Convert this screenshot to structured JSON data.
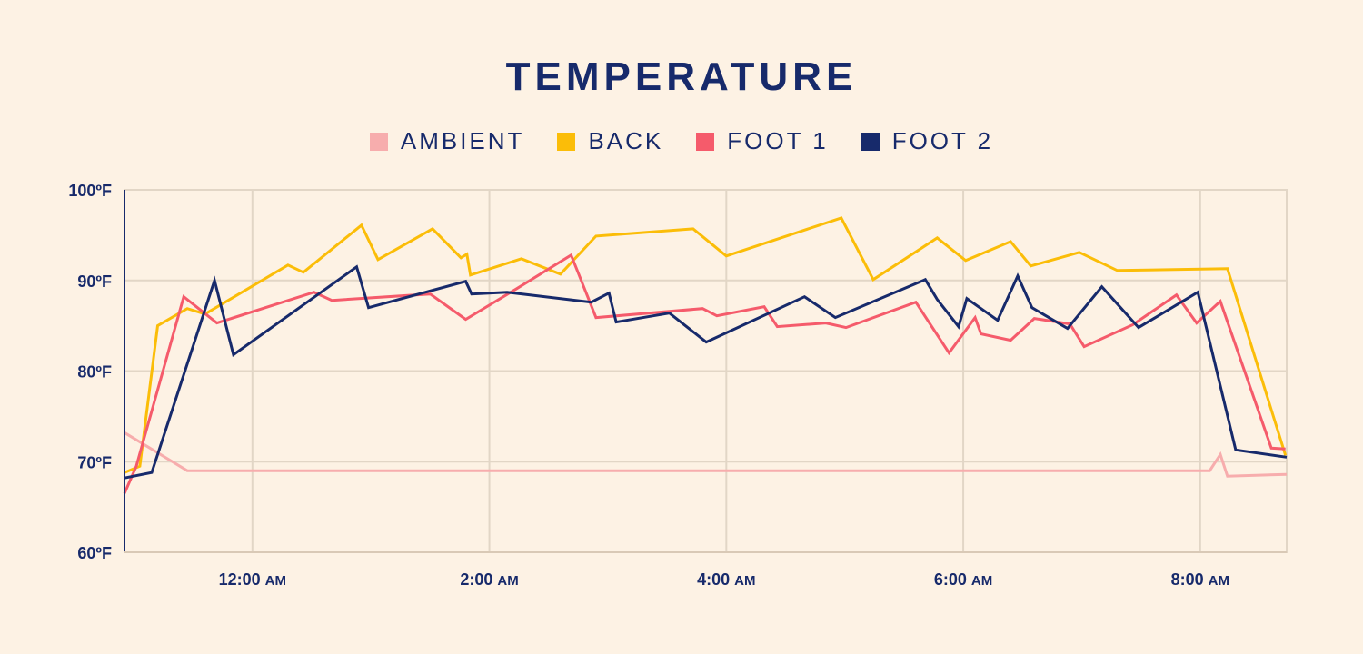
{
  "chart_data": {
    "type": "line",
    "title": "TEMPERATURE",
    "xlabel": "",
    "ylabel": "",
    "x_unit": "hours after 12:00 AM",
    "xlim": [
      -1.08,
      8.73
    ],
    "ylim": [
      60,
      100
    ],
    "grid": true,
    "legend_position": "top-center",
    "y_ticks": [
      {
        "value": 60,
        "label": "60ºF"
      },
      {
        "value": 70,
        "label": "70ºF"
      },
      {
        "value": 80,
        "label": "80ºF"
      },
      {
        "value": 90,
        "label": "90ºF"
      },
      {
        "value": 100,
        "label": "100ºF"
      }
    ],
    "x_ticks": [
      {
        "value": 0,
        "time": "12:00",
        "ampm": "AM"
      },
      {
        "value": 2,
        "time": "2:00",
        "ampm": "AM"
      },
      {
        "value": 4,
        "time": "4:00",
        "ampm": "AM"
      },
      {
        "value": 6,
        "time": "6:00",
        "ampm": "AM"
      },
      {
        "value": 8,
        "time": "8:00",
        "ampm": "AM"
      }
    ],
    "series": [
      {
        "name": "AMBIENT",
        "color": "#f7adad",
        "points": [
          [
            -1.08,
            73.2
          ],
          [
            -0.55,
            69.0
          ],
          [
            8.08,
            69.0
          ],
          [
            8.17,
            70.8
          ],
          [
            8.23,
            68.4
          ],
          [
            8.73,
            68.6
          ]
        ]
      },
      {
        "name": "BACK",
        "color": "#fbbd08",
        "points": [
          [
            -1.08,
            68.8
          ],
          [
            -0.95,
            69.5
          ],
          [
            -0.8,
            85.0
          ],
          [
            -0.55,
            86.9
          ],
          [
            -0.4,
            86.3
          ],
          [
            0.3,
            91.7
          ],
          [
            0.43,
            90.9
          ],
          [
            0.92,
            96.1
          ],
          [
            1.06,
            92.3
          ],
          [
            1.52,
            95.7
          ],
          [
            1.76,
            92.5
          ],
          [
            1.81,
            92.9
          ],
          [
            1.84,
            90.6
          ],
          [
            2.27,
            92.4
          ],
          [
            2.6,
            90.7
          ],
          [
            2.9,
            94.9
          ],
          [
            3.72,
            95.7
          ],
          [
            4.0,
            92.7
          ],
          [
            4.97,
            96.9
          ],
          [
            5.24,
            90.1
          ],
          [
            5.78,
            94.7
          ],
          [
            6.02,
            92.2
          ],
          [
            6.4,
            94.3
          ],
          [
            6.57,
            91.6
          ],
          [
            6.98,
            93.1
          ],
          [
            7.3,
            91.1
          ],
          [
            8.23,
            91.3
          ],
          [
            8.72,
            70.7
          ]
        ]
      },
      {
        "name": "FOOT 1",
        "color": "#f55b6b",
        "points": [
          [
            -1.08,
            66.5
          ],
          [
            -0.98,
            69.5
          ],
          [
            -0.58,
            88.2
          ],
          [
            -0.3,
            85.3
          ],
          [
            0.52,
            88.7
          ],
          [
            0.67,
            87.8
          ],
          [
            1.5,
            88.5
          ],
          [
            1.8,
            85.7
          ],
          [
            2.22,
            89.0
          ],
          [
            2.69,
            92.8
          ],
          [
            2.9,
            85.9
          ],
          [
            3.8,
            86.9
          ],
          [
            3.92,
            86.1
          ],
          [
            4.32,
            87.1
          ],
          [
            4.43,
            84.9
          ],
          [
            4.84,
            85.3
          ],
          [
            5.01,
            84.8
          ],
          [
            5.6,
            87.6
          ],
          [
            5.88,
            82.0
          ],
          [
            6.1,
            85.9
          ],
          [
            6.15,
            84.1
          ],
          [
            6.4,
            83.4
          ],
          [
            6.6,
            85.8
          ],
          [
            6.9,
            85.2
          ],
          [
            7.02,
            82.7
          ],
          [
            7.43,
            85.1
          ],
          [
            7.8,
            88.4
          ],
          [
            7.97,
            85.3
          ],
          [
            8.17,
            87.7
          ],
          [
            8.6,
            71.5
          ],
          [
            8.72,
            71.4
          ]
        ]
      },
      {
        "name": "FOOT 2",
        "color": "#172a6b",
        "points": [
          [
            -1.08,
            68.2
          ],
          [
            -0.85,
            68.8
          ],
          [
            -0.32,
            90.0
          ],
          [
            -0.16,
            81.8
          ],
          [
            0.88,
            91.5
          ],
          [
            0.98,
            87.0
          ],
          [
            1.8,
            89.9
          ],
          [
            1.85,
            88.5
          ],
          [
            2.15,
            88.7
          ],
          [
            2.86,
            87.6
          ],
          [
            3.01,
            88.6
          ],
          [
            3.07,
            85.4
          ],
          [
            3.52,
            86.4
          ],
          [
            3.83,
            83.2
          ],
          [
            4.66,
            88.2
          ],
          [
            4.92,
            85.9
          ],
          [
            5.68,
            90.1
          ],
          [
            5.78,
            87.9
          ],
          [
            5.96,
            84.9
          ],
          [
            6.03,
            88.0
          ],
          [
            6.29,
            85.6
          ],
          [
            6.46,
            90.5
          ],
          [
            6.58,
            87.0
          ],
          [
            6.88,
            84.7
          ],
          [
            7.17,
            89.3
          ],
          [
            7.48,
            84.8
          ],
          [
            7.98,
            88.7
          ],
          [
            8.3,
            71.3
          ],
          [
            8.73,
            70.5
          ]
        ]
      }
    ]
  }
}
